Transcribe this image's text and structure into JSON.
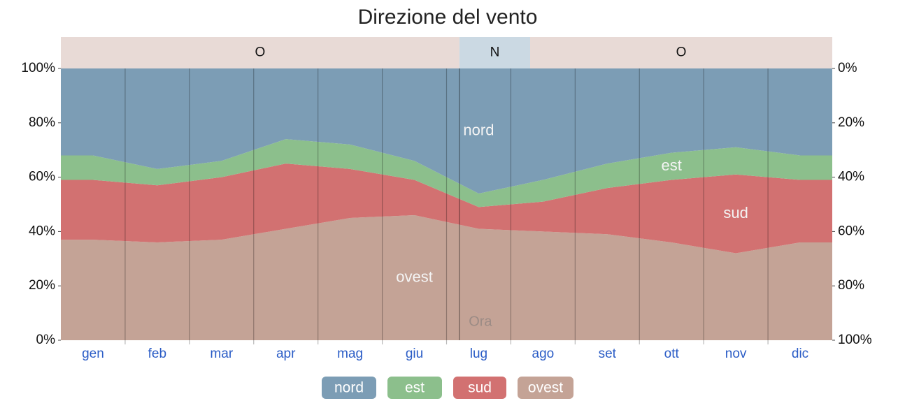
{
  "chart_data": {
    "type": "stacked_area",
    "title": "Direzione del vento",
    "categories": [
      "gen",
      "feb",
      "mar",
      "apr",
      "mag",
      "giu",
      "lug",
      "ago",
      "set",
      "ott",
      "nov",
      "dic"
    ],
    "series": [
      {
        "name": "nord",
        "color": "#7c9db5",
        "values": [
          32,
          37,
          34,
          26,
          28,
          34,
          46,
          41,
          35,
          31,
          29,
          32
        ]
      },
      {
        "name": "est",
        "color": "#8cbf8c",
        "values": [
          9,
          6,
          6,
          9,
          9,
          7,
          5,
          8,
          9,
          10,
          10,
          9
        ]
      },
      {
        "name": "sud",
        "color": "#d27171",
        "values": [
          22,
          21,
          23,
          24,
          18,
          13,
          8,
          11,
          17,
          23,
          29,
          23
        ]
      },
      {
        "name": "ovest",
        "color": "#c4a396",
        "values": [
          37,
          36,
          37,
          41,
          45,
          46,
          41,
          40,
          39,
          36,
          32,
          36
        ]
      }
    ],
    "ylim": [
      0,
      100
    ],
    "yticks": [
      {
        "value": 0,
        "label": "0%"
      },
      {
        "value": 20,
        "label": "20%"
      },
      {
        "value": 40,
        "label": "40%"
      },
      {
        "value": 60,
        "label": "60%"
      },
      {
        "value": 80,
        "label": "80%"
      },
      {
        "value": 100,
        "label": "100%"
      }
    ],
    "y2lim": [
      100,
      0
    ],
    "y2ticks": [
      {
        "value": 0,
        "label": "0%"
      },
      {
        "value": 20,
        "label": "20%"
      },
      {
        "value": 40,
        "label": "40%"
      },
      {
        "value": 60,
        "label": "60%"
      },
      {
        "value": 80,
        "label": "80%"
      },
      {
        "value": 100,
        "label": "100%"
      }
    ],
    "dominant": [
      {
        "label": "O",
        "from": 0,
        "to": 6.2,
        "color": "#e8dad6"
      },
      {
        "label": "N",
        "from": 6.2,
        "to": 7.3,
        "color": "#cbd9e3"
      },
      {
        "label": "O",
        "from": 7.3,
        "to": 12,
        "color": "#e8dad6"
      }
    ],
    "annotation": "Ora",
    "now_month": 6.2
  }
}
